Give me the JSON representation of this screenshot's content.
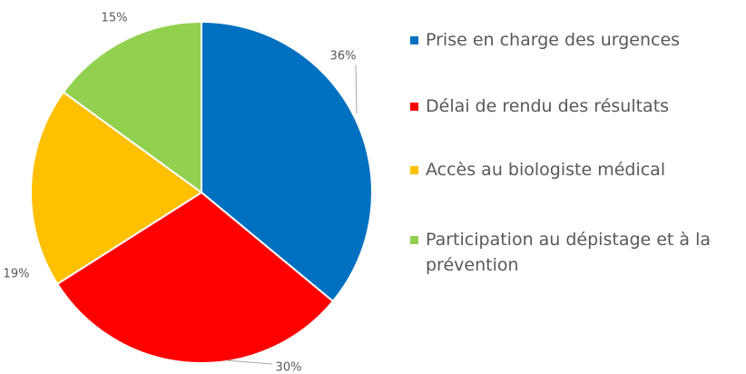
{
  "chart_data": {
    "type": "pie",
    "categories": [
      "Prise en charge des urgences",
      "Délai de rendu des résultats",
      "Accès au biologiste médical",
      "Participation au dépistage et à la prévention"
    ],
    "values": [
      36,
      30,
      19,
      15
    ],
    "value_labels": [
      "36%",
      "30%",
      "19%",
      "15%"
    ],
    "colors": [
      "#0070c0",
      "#ff0000",
      "#ffc000",
      "#92d050"
    ],
    "legend": "right"
  }
}
